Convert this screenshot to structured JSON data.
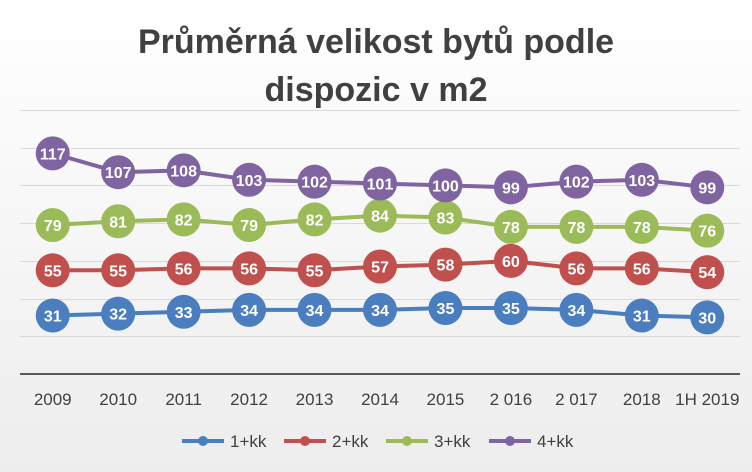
{
  "chart_data": {
    "type": "line",
    "title_lines": [
      "Průměrná velikost bytů podle",
      "dispozic v m2"
    ],
    "categories": [
      "2009",
      "2010",
      "2011",
      "2012",
      "2013",
      "2014",
      "2015",
      "2 016",
      "2 017",
      "2018",
      "1H 2019"
    ],
    "series": [
      {
        "name": "1+kk",
        "color": "#4a7ebf",
        "values": [
          31,
          32,
          33,
          34,
          34,
          34,
          35,
          35,
          34,
          31,
          30
        ]
      },
      {
        "name": "2+kk",
        "color": "#c0504d",
        "values": [
          55,
          55,
          56,
          56,
          55,
          57,
          58,
          60,
          56,
          56,
          54
        ]
      },
      {
        "name": "3+kk",
        "color": "#9bbb59",
        "values": [
          79,
          81,
          82,
          79,
          82,
          84,
          83,
          78,
          78,
          78,
          76
        ]
      },
      {
        "name": "4+kk",
        "color": "#8064a2",
        "values": [
          117,
          107,
          108,
          103,
          102,
          101,
          100,
          99,
          102,
          103,
          99
        ]
      }
    ],
    "ylim": [
      0,
      140
    ],
    "grid": true,
    "data_labels": true,
    "legend_position": "bottom"
  }
}
